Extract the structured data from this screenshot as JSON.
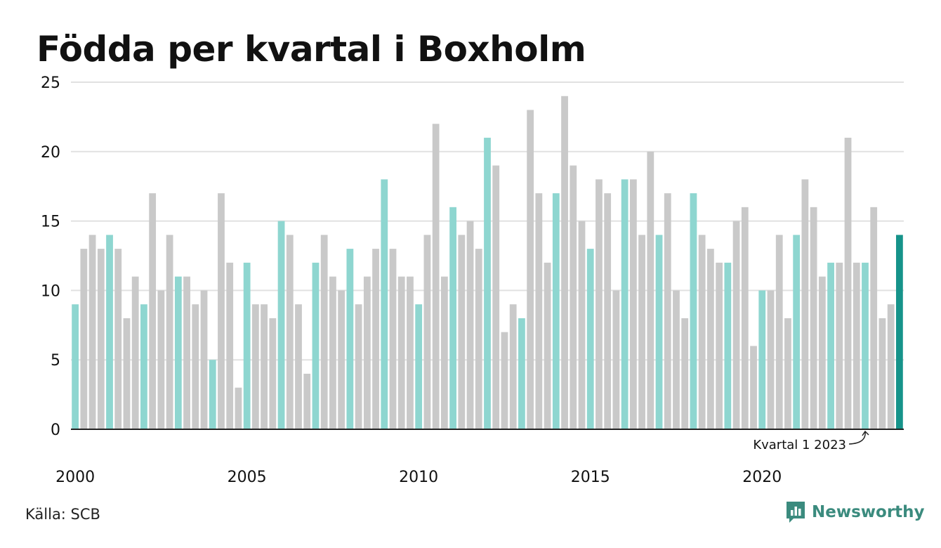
{
  "title": "Födda per kvartal i Boxholm",
  "source": "Källa: SCB",
  "brand": {
    "name": "Newsworthy",
    "icon": "newsworthy-logo-icon"
  },
  "colors": {
    "highlight": "#8ed6d0",
    "other": "#c9c9c9",
    "latest": "#16938a",
    "brand": "#3b8b7e",
    "grid": "#e1e1e1",
    "axis": "#222222",
    "text": "#111111"
  },
  "chart_data": {
    "type": "bar",
    "title": "Födda per kvartal i Boxholm",
    "xlabel": "",
    "ylabel": "",
    "ylim": [
      0,
      25
    ],
    "yticks": [
      "0",
      "5",
      "10",
      "15",
      "20",
      "25"
    ],
    "grid": true,
    "highlighted_quarter": 1,
    "year_labels": [
      "2000",
      "2005",
      "2010",
      "2015",
      "2020"
    ],
    "annotation": "Kvartal 1 2023",
    "annotated_index": 92,
    "categories": [
      "2000 Q1",
      "2000 Q2",
      "2000 Q3",
      "2000 Q4",
      "2001 Q1",
      "2001 Q2",
      "2001 Q3",
      "2001 Q4",
      "2002 Q1",
      "2002 Q2",
      "2002 Q3",
      "2002 Q4",
      "2003 Q1",
      "2003 Q2",
      "2003 Q3",
      "2003 Q4",
      "2004 Q1",
      "2004 Q2",
      "2004 Q3",
      "2004 Q4",
      "2005 Q1",
      "2005 Q2",
      "2005 Q3",
      "2005 Q4",
      "2006 Q1",
      "2006 Q2",
      "2006 Q3",
      "2006 Q4",
      "2007 Q1",
      "2007 Q2",
      "2007 Q3",
      "2007 Q4",
      "2008 Q1",
      "2008 Q2",
      "2008 Q3",
      "2008 Q4",
      "2009 Q1",
      "2009 Q2",
      "2009 Q3",
      "2009 Q4",
      "2010 Q1",
      "2010 Q2",
      "2010 Q3",
      "2010 Q4",
      "2011 Q1",
      "2011 Q2",
      "2011 Q3",
      "2011 Q4",
      "2012 Q1",
      "2012 Q2",
      "2012 Q3",
      "2012 Q4",
      "2013 Q1",
      "2013 Q2",
      "2013 Q3",
      "2013 Q4",
      "2014 Q1",
      "2014 Q2",
      "2014 Q3",
      "2014 Q4",
      "2015 Q1",
      "2015 Q2",
      "2015 Q3",
      "2015 Q4",
      "2016 Q1",
      "2016 Q2",
      "2016 Q3",
      "2016 Q4",
      "2017 Q1",
      "2017 Q2",
      "2017 Q3",
      "2017 Q4",
      "2018 Q1",
      "2018 Q2",
      "2018 Q3",
      "2018 Q4",
      "2019 Q1",
      "2019 Q2",
      "2019 Q3",
      "2019 Q4",
      "2020 Q1",
      "2020 Q2",
      "2020 Q3",
      "2020 Q4",
      "2021 Q1",
      "2021 Q2",
      "2021 Q3",
      "2021 Q4",
      "2022 Q1",
      "2022 Q2",
      "2022 Q3",
      "2022 Q4",
      "2023 Q1",
      "2023 Q2",
      "2023 Q3",
      "2023 Q4",
      "2024 Q1"
    ],
    "values": [
      9,
      13,
      14,
      13,
      14,
      13,
      8,
      11,
      9,
      17,
      10,
      14,
      11,
      11,
      9,
      10,
      5,
      17,
      12,
      3,
      12,
      9,
      9,
      8,
      15,
      14,
      9,
      4,
      12,
      14,
      11,
      10,
      13,
      9,
      11,
      13,
      18,
      13,
      11,
      11,
      9,
      14,
      22,
      11,
      16,
      14,
      15,
      13,
      21,
      19,
      7,
      9,
      8,
      23,
      17,
      12,
      17,
      24,
      19,
      15,
      13,
      18,
      17,
      10,
      18,
      18,
      14,
      20,
      14,
      17,
      10,
      8,
      17,
      14,
      13,
      12,
      12,
      15,
      16,
      6,
      10,
      10,
      14,
      8,
      14,
      18,
      16,
      11,
      12,
      12,
      21,
      12,
      12,
      16,
      8,
      9,
      14
    ]
  }
}
